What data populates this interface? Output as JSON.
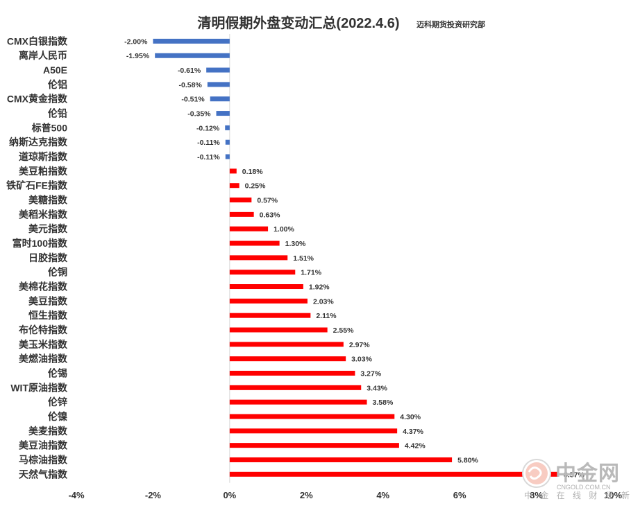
{
  "chart_data": {
    "type": "bar",
    "orientation": "horizontal",
    "title": "清明假期外盘变动汇总(2022.4.6)",
    "subtitle": "迈科期货投资研究部",
    "categories": [
      "CMX白银指数",
      "离岸人民币",
      "A50E",
      "伦铝",
      "CMX黄金指数",
      "伦铅",
      "标普500",
      "纳斯达克指数",
      "道琼斯指数",
      "美豆粕指数",
      "铁矿石FE指数",
      "美糖指数",
      "美稻米指数",
      "美元指数",
      "富时100指数",
      "日胶指数",
      "伦铜",
      "美棉花指数",
      "美豆指数",
      "恒生指数",
      "布伦特指数",
      "美玉米指数",
      "美燃油指数",
      "伦锡",
      "WIT原油指数",
      "伦锌",
      "伦镍",
      "美麦指数",
      "美豆油指数",
      "马棕油指数",
      "天然气指数"
    ],
    "values": [
      -2.0,
      -1.95,
      -0.61,
      -0.58,
      -0.51,
      -0.35,
      -0.12,
      -0.11,
      -0.11,
      0.18,
      0.25,
      0.57,
      0.63,
      1.0,
      1.3,
      1.51,
      1.71,
      1.92,
      2.03,
      2.11,
      2.55,
      2.97,
      3.03,
      3.27,
      3.43,
      3.58,
      4.3,
      4.37,
      4.42,
      5.8,
      8.57
    ],
    "value_labels": [
      "-2.00%",
      "-1.95%",
      "-0.61%",
      "-0.58%",
      "-0.51%",
      "-0.35%",
      "-0.12%",
      "-0.11%",
      "-0.11%",
      "0.18%",
      "0.25%",
      "0.57%",
      "0.63%",
      "1.00%",
      "1.30%",
      "1.51%",
      "1.71%",
      "1.92%",
      "2.03%",
      "2.11%",
      "2.55%",
      "2.97%",
      "3.03%",
      "3.27%",
      "3.43%",
      "3.58%",
      "4.30%",
      "4.37%",
      "4.42%",
      "5.80%",
      "8.57%"
    ],
    "xlim": [
      -4,
      10
    ],
    "xticks": [
      "-4%",
      "-2%",
      "0%",
      "2%",
      "4%",
      "6%",
      "8%",
      "10%"
    ],
    "xtick_values": [
      -4,
      -2,
      0,
      2,
      4,
      6,
      8,
      10
    ],
    "grid": false,
    "legend": "none",
    "colors": {
      "positive": "#ff0000",
      "negative": "#4472c4",
      "axis": "#d9d9d9",
      "text": "#333333"
    }
  },
  "watermark": {
    "brand": "中金网",
    "domain": "CNGOLD.COM.CN",
    "tagline": "中 金 在 线 财 经 新 媒 体"
  }
}
